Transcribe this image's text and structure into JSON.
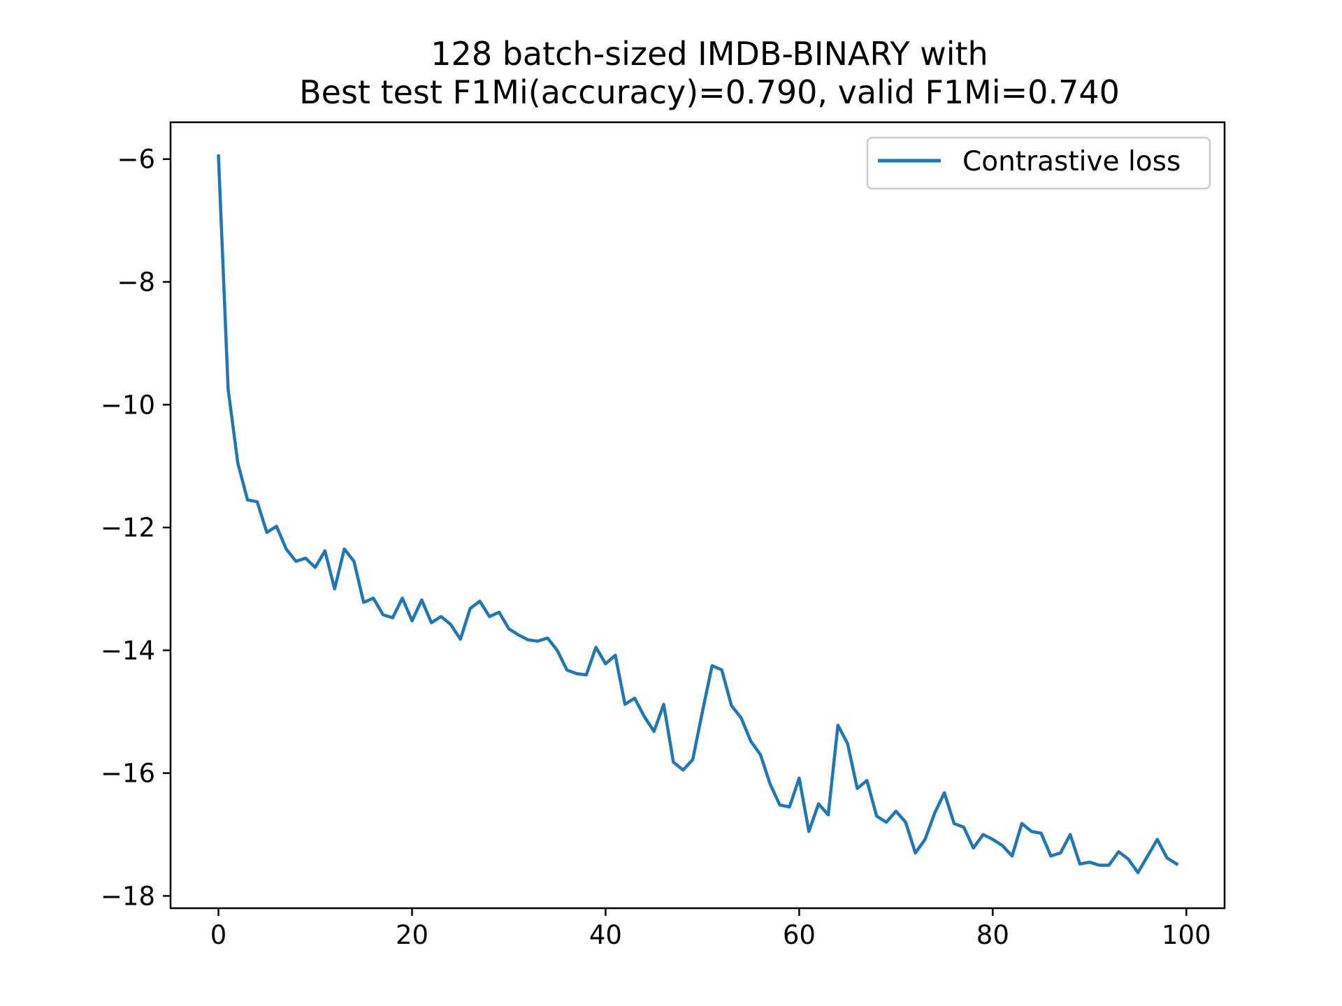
{
  "chart_data": {
    "type": "line",
    "title": [
      "128 batch-sized IMDB-BINARY with",
      "Best test F1Mi(accuracy)=0.790, valid F1Mi=0.740"
    ],
    "xlabel": "",
    "ylabel": "",
    "xlim": [
      -4.95,
      103.95
    ],
    "ylim": [
      -18.2,
      -5.4
    ],
    "x_ticks": [
      0,
      20,
      40,
      60,
      80,
      100
    ],
    "y_ticks": [
      -6,
      -8,
      -10,
      -12,
      -14,
      -16,
      -18
    ],
    "x_tick_labels": [
      "0",
      "20",
      "40",
      "60",
      "80",
      "100"
    ],
    "y_tick_labels": [
      "−6",
      "−8",
      "−10",
      "−12",
      "−14",
      "−16",
      "−18"
    ],
    "grid": false,
    "legend_position": "top-right",
    "series": [
      {
        "name": "Contrastive loss",
        "color": "#1f77b4",
        "x": [
          0,
          1,
          2,
          3,
          4,
          5,
          6,
          7,
          8,
          9,
          10,
          11,
          12,
          13,
          14,
          15,
          16,
          17,
          18,
          19,
          20,
          21,
          22,
          23,
          24,
          25,
          26,
          27,
          28,
          29,
          30,
          31,
          32,
          33,
          34,
          35,
          36,
          37,
          38,
          39,
          40,
          41,
          42,
          43,
          44,
          45,
          46,
          47,
          48,
          49,
          50,
          51,
          52,
          53,
          54,
          55,
          56,
          57,
          58,
          59,
          60,
          61,
          62,
          63,
          64,
          65,
          66,
          67,
          68,
          69,
          70,
          71,
          72,
          73,
          74,
          75,
          76,
          77,
          78,
          79,
          80,
          81,
          82,
          83,
          84,
          85,
          86,
          87,
          88,
          89,
          90,
          91,
          92,
          93,
          94,
          95,
          96,
          97,
          98,
          99
        ],
        "values": [
          -5.95,
          -9.75,
          -10.95,
          -11.55,
          -11.58,
          -12.08,
          -11.98,
          -12.35,
          -12.55,
          -12.5,
          -12.65,
          -12.38,
          -13.0,
          -12.35,
          -12.55,
          -13.22,
          -13.15,
          -13.42,
          -13.47,
          -13.15,
          -13.52,
          -13.18,
          -13.55,
          -13.45,
          -13.58,
          -13.82,
          -13.32,
          -13.2,
          -13.45,
          -13.38,
          -13.65,
          -13.75,
          -13.83,
          -13.85,
          -13.8,
          -14.0,
          -14.32,
          -14.38,
          -14.4,
          -13.95,
          -14.22,
          -14.08,
          -14.88,
          -14.78,
          -15.08,
          -15.32,
          -14.88,
          -15.82,
          -15.95,
          -15.78,
          -15.0,
          -14.25,
          -14.32,
          -14.9,
          -15.1,
          -15.48,
          -15.7,
          -16.18,
          -16.52,
          -16.55,
          -16.08,
          -16.95,
          -16.5,
          -16.68,
          -15.22,
          -15.52,
          -16.25,
          -16.12,
          -16.7,
          -16.8,
          -16.62,
          -16.8,
          -17.3,
          -17.08,
          -16.65,
          -16.32,
          -16.82,
          -16.88,
          -17.22,
          -17.0,
          -17.08,
          -17.18,
          -17.35,
          -16.82,
          -16.95,
          -16.98,
          -17.35,
          -17.3,
          -17.0,
          -17.48,
          -17.45,
          -17.5,
          -17.5,
          -17.28,
          -17.4,
          -17.62,
          -17.35,
          -17.08,
          -17.38,
          -17.48
        ]
      }
    ]
  }
}
